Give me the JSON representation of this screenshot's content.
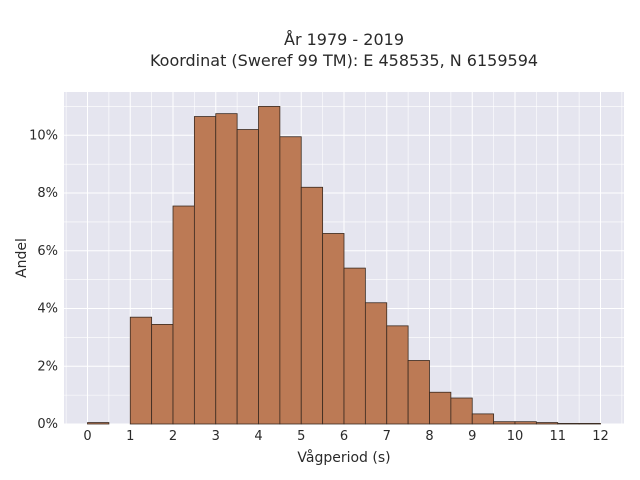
{
  "chart_data": {
    "type": "bar",
    "title_line1": "År 1979 - 2019",
    "title_line2": "Koordinat (Sweref 99 TM): E 458535, N 6159594",
    "xlabel": "Vågperiod (s)",
    "ylabel": "Andel",
    "xlim": [
      -0.55,
      12.55
    ],
    "ylim": [
      0,
      11.5
    ],
    "xticks": [
      0,
      1,
      2,
      3,
      4,
      5,
      6,
      7,
      8,
      9,
      10,
      11,
      12
    ],
    "yticks": [
      0,
      2,
      4,
      6,
      8,
      10
    ],
    "ytick_labels": [
      "0%",
      "2%",
      "4%",
      "6%",
      "8%",
      "10%"
    ],
    "grid": true,
    "bin_width": 0.5,
    "bins": [
      {
        "x0": 0.0,
        "value": 0.05
      },
      {
        "x0": 1.0,
        "value": 3.7
      },
      {
        "x0": 1.5,
        "value": 3.45
      },
      {
        "x0": 2.0,
        "value": 7.55
      },
      {
        "x0": 2.5,
        "value": 10.65
      },
      {
        "x0": 3.0,
        "value": 10.75
      },
      {
        "x0": 3.5,
        "value": 10.2
      },
      {
        "x0": 4.0,
        "value": 11.0
      },
      {
        "x0": 4.5,
        "value": 9.95
      },
      {
        "x0": 5.0,
        "value": 8.2
      },
      {
        "x0": 5.5,
        "value": 6.6
      },
      {
        "x0": 6.0,
        "value": 5.4
      },
      {
        "x0": 6.5,
        "value": 4.2
      },
      {
        "x0": 7.0,
        "value": 3.4
      },
      {
        "x0": 7.5,
        "value": 2.2
      },
      {
        "x0": 8.0,
        "value": 1.1
      },
      {
        "x0": 8.5,
        "value": 0.9
      },
      {
        "x0": 9.0,
        "value": 0.35
      },
      {
        "x0": 9.5,
        "value": 0.08
      },
      {
        "x0": 10.0,
        "value": 0.08
      },
      {
        "x0": 10.5,
        "value": 0.05
      },
      {
        "x0": 11.0,
        "value": 0.02
      },
      {
        "x0": 11.5,
        "value": 0.02
      }
    ]
  },
  "colors": {
    "plot_bg": "#e5e5ef",
    "grid": "#ffffff",
    "bar_fill": "#bc7a55",
    "bar_stroke": "#3a2a20",
    "text": "#2a2a2a"
  }
}
